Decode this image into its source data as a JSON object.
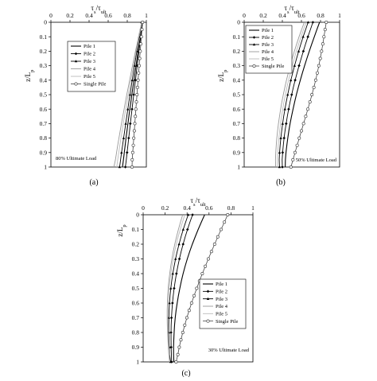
{
  "chart_data": [
    {
      "type": "line",
      "panel": "(a)",
      "annotation": "80% Ultimate Load",
      "xlabel": "τs/τult",
      "ylabel": "z/Lp",
      "xlim": [
        0,
        1
      ],
      "ylim": [
        0,
        1
      ],
      "x_ticks": [
        "0",
        "0.2",
        "0.4",
        "0.6",
        "0.8",
        "1"
      ],
      "y_ticks": [
        "0",
        "0.1",
        "0.2",
        "0.3",
        "0.4",
        "0.5",
        "0.6",
        "0.7",
        "0.8",
        "0.9",
        "1"
      ],
      "y_inverted": true,
      "x_axis_position": "top",
      "grid": false,
      "legend_position": "top-left",
      "z": [
        0,
        0.05,
        0.1,
        0.15,
        0.2,
        0.25,
        0.3,
        0.35,
        0.4,
        0.45,
        0.5,
        0.55,
        0.6,
        0.65,
        0.7,
        0.75,
        0.8,
        0.85,
        0.9,
        0.95,
        1
      ],
      "series": [
        {
          "name": "Pile 1",
          "marker": "none",
          "values": [
            0.96,
            0.949,
            0.937,
            0.926,
            0.914,
            0.903,
            0.892,
            0.881,
            0.87,
            0.859,
            0.848,
            0.838,
            0.827,
            0.817,
            0.807,
            0.797,
            0.787,
            0.778,
            0.769,
            0.76,
            0.75
          ]
        },
        {
          "name": "Pile 2",
          "marker": "diamond",
          "values": [
            0.96,
            0.951,
            0.941,
            0.932,
            0.922,
            0.913,
            0.904,
            0.895,
            0.886,
            0.877,
            0.868,
            0.859,
            0.85,
            0.841,
            0.832,
            0.824,
            0.815,
            0.807,
            0.798,
            0.79,
            0.78
          ]
        },
        {
          "name": "Pile 3",
          "marker": "triangle",
          "values": [
            0.95,
            0.938,
            0.925,
            0.913,
            0.9,
            0.888,
            0.876,
            0.864,
            0.852,
            0.84,
            0.829,
            0.817,
            0.806,
            0.795,
            0.784,
            0.773,
            0.762,
            0.751,
            0.74,
            0.73,
            0.72
          ]
        },
        {
          "name": "Pile 4",
          "marker": "none",
          "values": [
            0.95,
            0.934,
            0.918,
            0.902,
            0.886,
            0.871,
            0.855,
            0.84,
            0.825,
            0.81,
            0.795,
            0.781,
            0.767,
            0.753,
            0.739,
            0.726,
            0.713,
            0.7,
            0.688,
            0.676,
            0.66
          ]
        },
        {
          "name": "Pile 5",
          "marker": "none",
          "values": [
            0.95,
            0.936,
            0.921,
            0.907,
            0.893,
            0.879,
            0.865,
            0.851,
            0.837,
            0.823,
            0.81,
            0.797,
            0.784,
            0.771,
            0.758,
            0.746,
            0.734,
            0.722,
            0.711,
            0.7,
            0.69
          ]
        },
        {
          "name": "Single Pile",
          "marker": "circle",
          "values": [
            0.96,
            0.954,
            0.948,
            0.942,
            0.936,
            0.93,
            0.925,
            0.919,
            0.913,
            0.907,
            0.902,
            0.896,
            0.89,
            0.885,
            0.879,
            0.874,
            0.868,
            0.863,
            0.857,
            0.852,
            0.85
          ]
        }
      ]
    },
    {
      "type": "line",
      "panel": "(b)",
      "annotation": "50% Ultimate Load",
      "xlabel": "τs/τult",
      "ylabel": "z/Lp",
      "xlim": [
        0,
        1
      ],
      "ylim": [
        0,
        1
      ],
      "x_ticks": [
        "0",
        "0.2",
        "0.4",
        "0.6",
        "0.8",
        "1"
      ],
      "y_ticks": [
        "0",
        "0.1",
        "0.2",
        "0.3",
        "0.4",
        "0.5",
        "0.6",
        "0.7",
        "0.8",
        "0.9",
        "1"
      ],
      "y_inverted": true,
      "x_axis_position": "top",
      "grid": false,
      "legend_position": "top-left",
      "z": [
        0,
        0.05,
        0.1,
        0.15,
        0.2,
        0.25,
        0.3,
        0.35,
        0.4,
        0.45,
        0.5,
        0.55,
        0.6,
        0.65,
        0.7,
        0.75,
        0.8,
        0.85,
        0.9,
        0.95,
        1
      ],
      "series": [
        {
          "name": "Pile 1",
          "marker": "none",
          "values": [
            0.79,
            0.762,
            0.735,
            0.708,
            0.682,
            0.657,
            0.633,
            0.61,
            0.588,
            0.567,
            0.547,
            0.529,
            0.512,
            0.496,
            0.481,
            0.468,
            0.457,
            0.447,
            0.438,
            0.432,
            0.43
          ]
        },
        {
          "name": "Pile 2",
          "marker": "diamond",
          "values": [
            0.72,
            0.694,
            0.668,
            0.643,
            0.62,
            0.597,
            0.575,
            0.554,
            0.534,
            0.515,
            0.498,
            0.481,
            0.466,
            0.452,
            0.44,
            0.428,
            0.418,
            0.41,
            0.403,
            0.398,
            0.4
          ]
        },
        {
          "name": "Pile 3",
          "marker": "triangle",
          "values": [
            0.67,
            0.644,
            0.618,
            0.594,
            0.571,
            0.549,
            0.528,
            0.508,
            0.489,
            0.472,
            0.456,
            0.441,
            0.427,
            0.414,
            0.403,
            0.393,
            0.384,
            0.377,
            0.371,
            0.367,
            0.37
          ]
        },
        {
          "name": "Pile 4",
          "marker": "none",
          "values": [
            0.63,
            0.602,
            0.575,
            0.55,
            0.526,
            0.503,
            0.482,
            0.462,
            0.443,
            0.426,
            0.41,
            0.395,
            0.382,
            0.37,
            0.359,
            0.35,
            0.342,
            0.336,
            0.331,
            0.328,
            0.33
          ]
        },
        {
          "name": "Pile 5",
          "marker": "none",
          "values": [
            0.65,
            0.622,
            0.596,
            0.571,
            0.547,
            0.525,
            0.504,
            0.484,
            0.465,
            0.448,
            0.432,
            0.417,
            0.404,
            0.392,
            0.381,
            0.372,
            0.364,
            0.357,
            0.352,
            0.349,
            0.35
          ]
        },
        {
          "name": "Single Pile",
          "marker": "circle",
          "values": [
            0.86,
            0.848,
            0.836,
            0.824,
            0.811,
            0.797,
            0.782,
            0.766,
            0.749,
            0.73,
            0.71,
            0.689,
            0.667,
            0.645,
            0.622,
            0.6,
            0.577,
            0.555,
            0.533,
            0.511,
            0.49
          ]
        }
      ]
    },
    {
      "type": "line",
      "panel": "(c)",
      "annotation": "30% Ultimate Load",
      "xlabel": "τs/τult",
      "ylabel": "z/Lp",
      "xlim": [
        0,
        1
      ],
      "ylim": [
        0,
        1
      ],
      "x_ticks": [
        "0",
        "0.2",
        "0.4",
        "0.6",
        "0.8",
        "1"
      ],
      "y_ticks": [
        "0",
        "0.1",
        "0.2",
        "0.3",
        "0.4",
        "0.5",
        "0.6",
        "0.7",
        "0.8",
        "0.9",
        "1"
      ],
      "y_inverted": true,
      "x_axis_position": "top",
      "grid": false,
      "legend_position": "right",
      "z": [
        0,
        0.05,
        0.1,
        0.15,
        0.2,
        0.25,
        0.3,
        0.35,
        0.4,
        0.45,
        0.5,
        0.55,
        0.6,
        0.65,
        0.7,
        0.75,
        0.8,
        0.85,
        0.9,
        0.95,
        1
      ],
      "series": [
        {
          "name": "Pile 1",
          "marker": "none",
          "values": [
            0.56,
            0.53,
            0.501,
            0.474,
            0.448,
            0.424,
            0.402,
            0.382,
            0.364,
            0.348,
            0.334,
            0.321,
            0.31,
            0.3,
            0.292,
            0.286,
            0.282,
            0.279,
            0.277,
            0.277,
            0.28
          ]
        },
        {
          "name": "Pile 2",
          "marker": "diamond",
          "values": [
            0.45,
            0.426,
            0.404,
            0.383,
            0.364,
            0.346,
            0.33,
            0.316,
            0.303,
            0.292,
            0.282,
            0.274,
            0.267,
            0.262,
            0.258,
            0.255,
            0.254,
            0.254,
            0.255,
            0.257,
            0.26
          ]
        },
        {
          "name": "Pile 3",
          "marker": "triangle",
          "values": [
            0.41,
            0.387,
            0.365,
            0.345,
            0.327,
            0.31,
            0.295,
            0.282,
            0.27,
            0.26,
            0.252,
            0.245,
            0.24,
            0.236,
            0.234,
            0.233,
            0.233,
            0.235,
            0.238,
            0.241,
            0.25
          ]
        },
        {
          "name": "Pile 4",
          "marker": "none",
          "values": [
            0.36,
            0.34,
            0.321,
            0.304,
            0.288,
            0.274,
            0.262,
            0.251,
            0.242,
            0.234,
            0.228,
            0.224,
            0.221,
            0.219,
            0.219,
            0.22,
            0.222,
            0.225,
            0.229,
            0.234,
            0.24
          ]
        },
        {
          "name": "Pile 5",
          "marker": "none",
          "values": [
            0.38,
            0.358,
            0.338,
            0.319,
            0.302,
            0.287,
            0.274,
            0.262,
            0.252,
            0.243,
            0.236,
            0.231,
            0.227,
            0.225,
            0.224,
            0.225,
            0.227,
            0.23,
            0.234,
            0.239,
            0.24
          ]
        },
        {
          "name": "Single Pile",
          "marker": "circle",
          "values": [
            0.77,
            0.74,
            0.71,
            0.68,
            0.651,
            0.622,
            0.594,
            0.566,
            0.539,
            0.513,
            0.488,
            0.464,
            0.441,
            0.419,
            0.398,
            0.379,
            0.361,
            0.344,
            0.329,
            0.316,
            0.3
          ]
        }
      ]
    }
  ]
}
